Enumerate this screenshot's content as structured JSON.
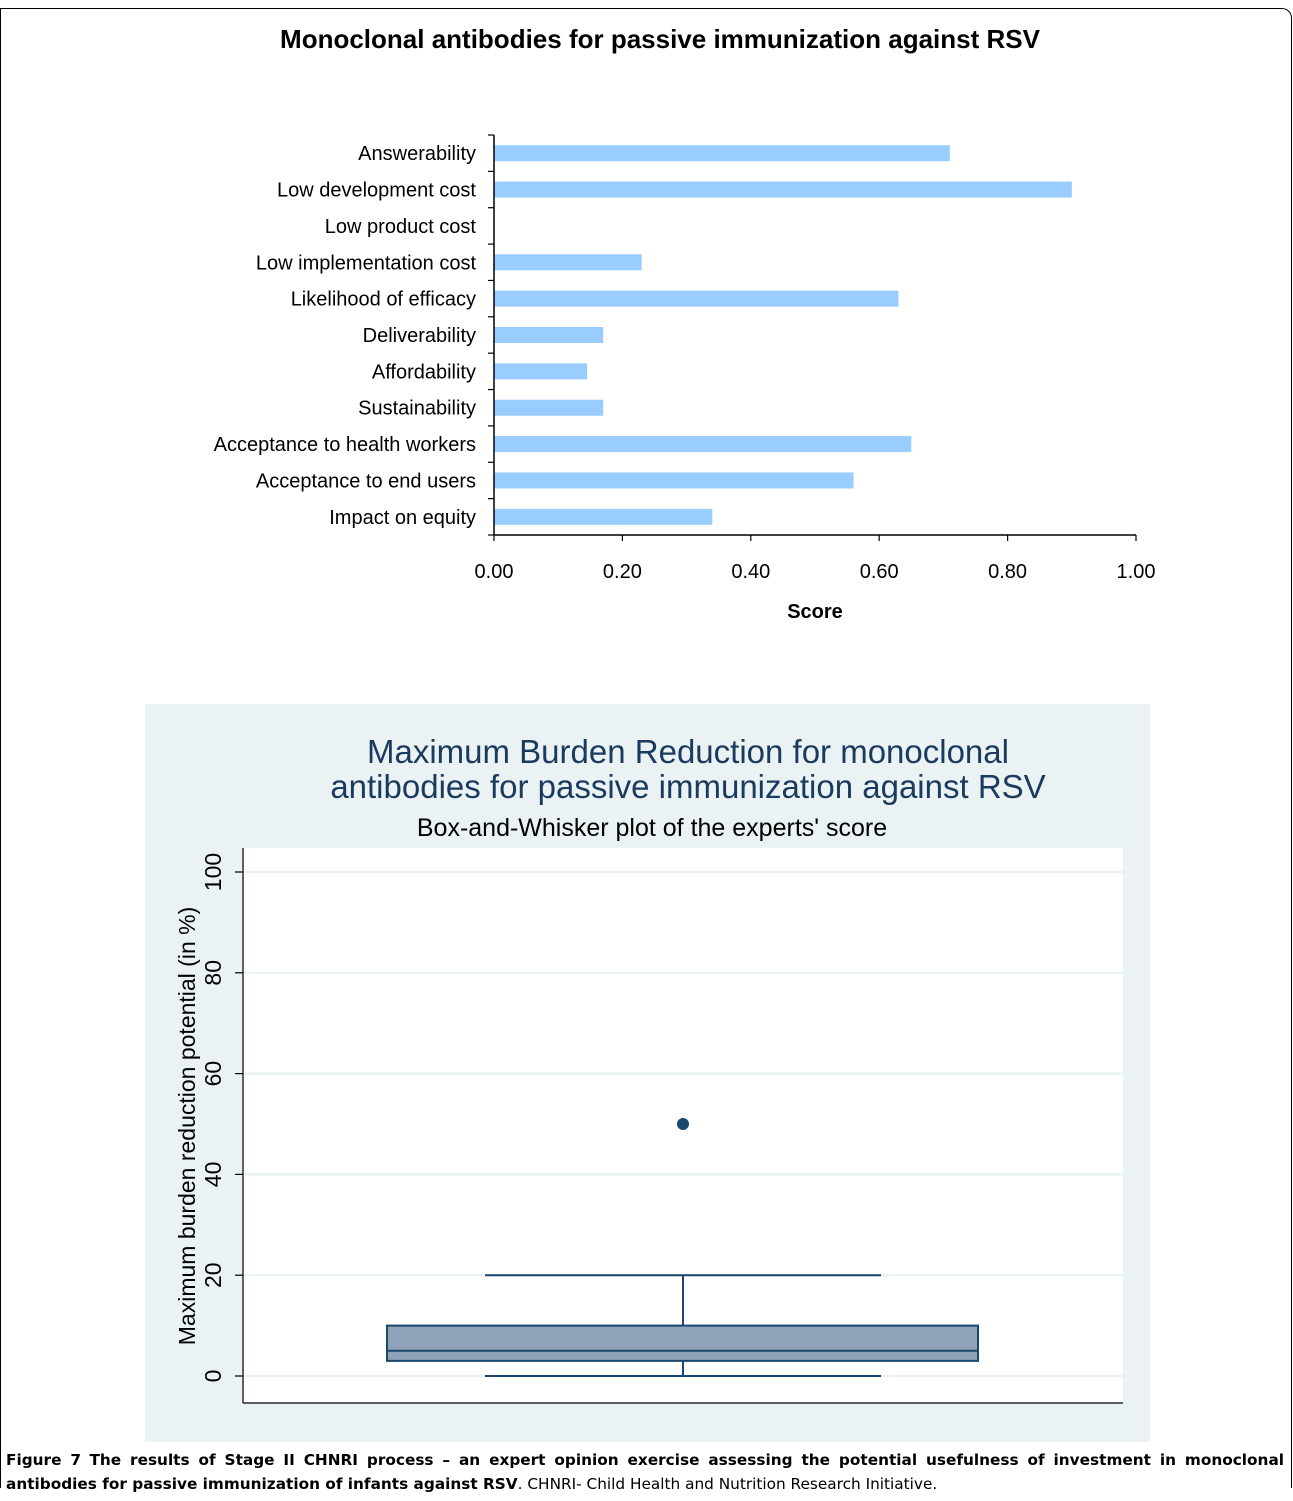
{
  "chart_data": [
    {
      "type": "bar",
      "orientation": "horizontal",
      "title": "Monoclonal antibodies for passive immunization against RSV",
      "xlabel": "Score",
      "ylabel": "",
      "categories": [
        "Answerability",
        "Low development cost",
        "Low product cost",
        "Low implementation cost",
        "Likelihood of efficacy",
        "Deliverability",
        "Affordability",
        "Sustainability",
        "Acceptance to health workers",
        "Acceptance to end users",
        "Impact on equity"
      ],
      "values": [
        0.71,
        0.9,
        0.0,
        0.23,
        0.63,
        0.17,
        0.145,
        0.17,
        0.65,
        0.56,
        0.34
      ],
      "xlim": [
        0,
        1
      ],
      "xticks": [
        "0.00",
        "0.20",
        "0.40",
        "0.60",
        "0.80",
        "1.00"
      ],
      "xtick_values": [
        0,
        0.2,
        0.4,
        0.6,
        0.8,
        1.0
      ],
      "bar_color": "#99ccff",
      "grid": false
    },
    {
      "type": "box",
      "title": "Maximum Burden Reduction for monoclonal antibodies for passive immunization against RSV",
      "subtitle": "Box-and-Whisker plot of the experts' score",
      "ylabel": "Maximum burden reduction potential (in %)",
      "ylim": [
        0,
        100
      ],
      "yticks": [
        "0",
        "20",
        "40",
        "60",
        "80",
        "100"
      ],
      "ytick_values": [
        0,
        20,
        40,
        60,
        80,
        100
      ],
      "box": {
        "min": 0,
        "q1": 3,
        "median": 5,
        "q3": 10,
        "max": 20,
        "outliers": [
          50
        ]
      },
      "grid": true,
      "background_color": "#eaf2f3",
      "plot_color": "#ffffff",
      "box_color": "#8fa2b7",
      "line_color": "#1a476f",
      "title_color": "#1a3a5e"
    }
  ],
  "caption": {
    "label": "Figure 7",
    "bold_text": "The results of Stage II CHNRI process – an expert opinion exercise assessing the potential usefulness of investment in monoclonal antibodies for passive immunization of infants against RSV",
    "plain_text": ". CHNRI- Child Health and Nutrition Research Initiative."
  }
}
